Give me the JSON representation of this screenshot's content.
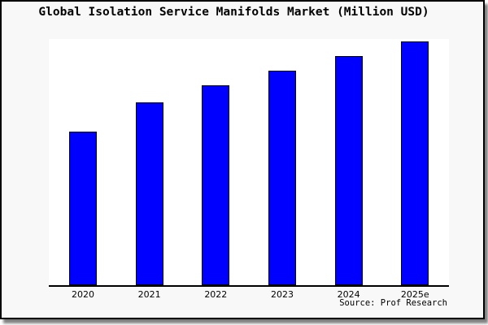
{
  "chart_data": {
    "type": "bar",
    "title": "Global Isolation Service Manifolds Market (Million USD)",
    "categories": [
      "2020",
      "2021",
      "2022",
      "2023",
      "2024",
      "2025e"
    ],
    "values": [
      63,
      75,
      82,
      88,
      94,
      100
    ],
    "xlabel": "",
    "ylabel": "",
    "ylim": [
      0,
      101
    ],
    "grid": false,
    "legend_position": "none",
    "value_note": "No y-axis scale shown in image; values are relative heights indexed to 2025e = 100",
    "bar_fill_color": "#0000ff",
    "bar_edge_color": "#000000",
    "plot_bg_color": "#ffffff",
    "figure_bg_color": "#f8f8f8",
    "border_color": "#000000"
  },
  "figure": {
    "title": "Global Isolation Service Manifolds Market (Million USD)",
    "source_label": "Source: Prof Research"
  }
}
